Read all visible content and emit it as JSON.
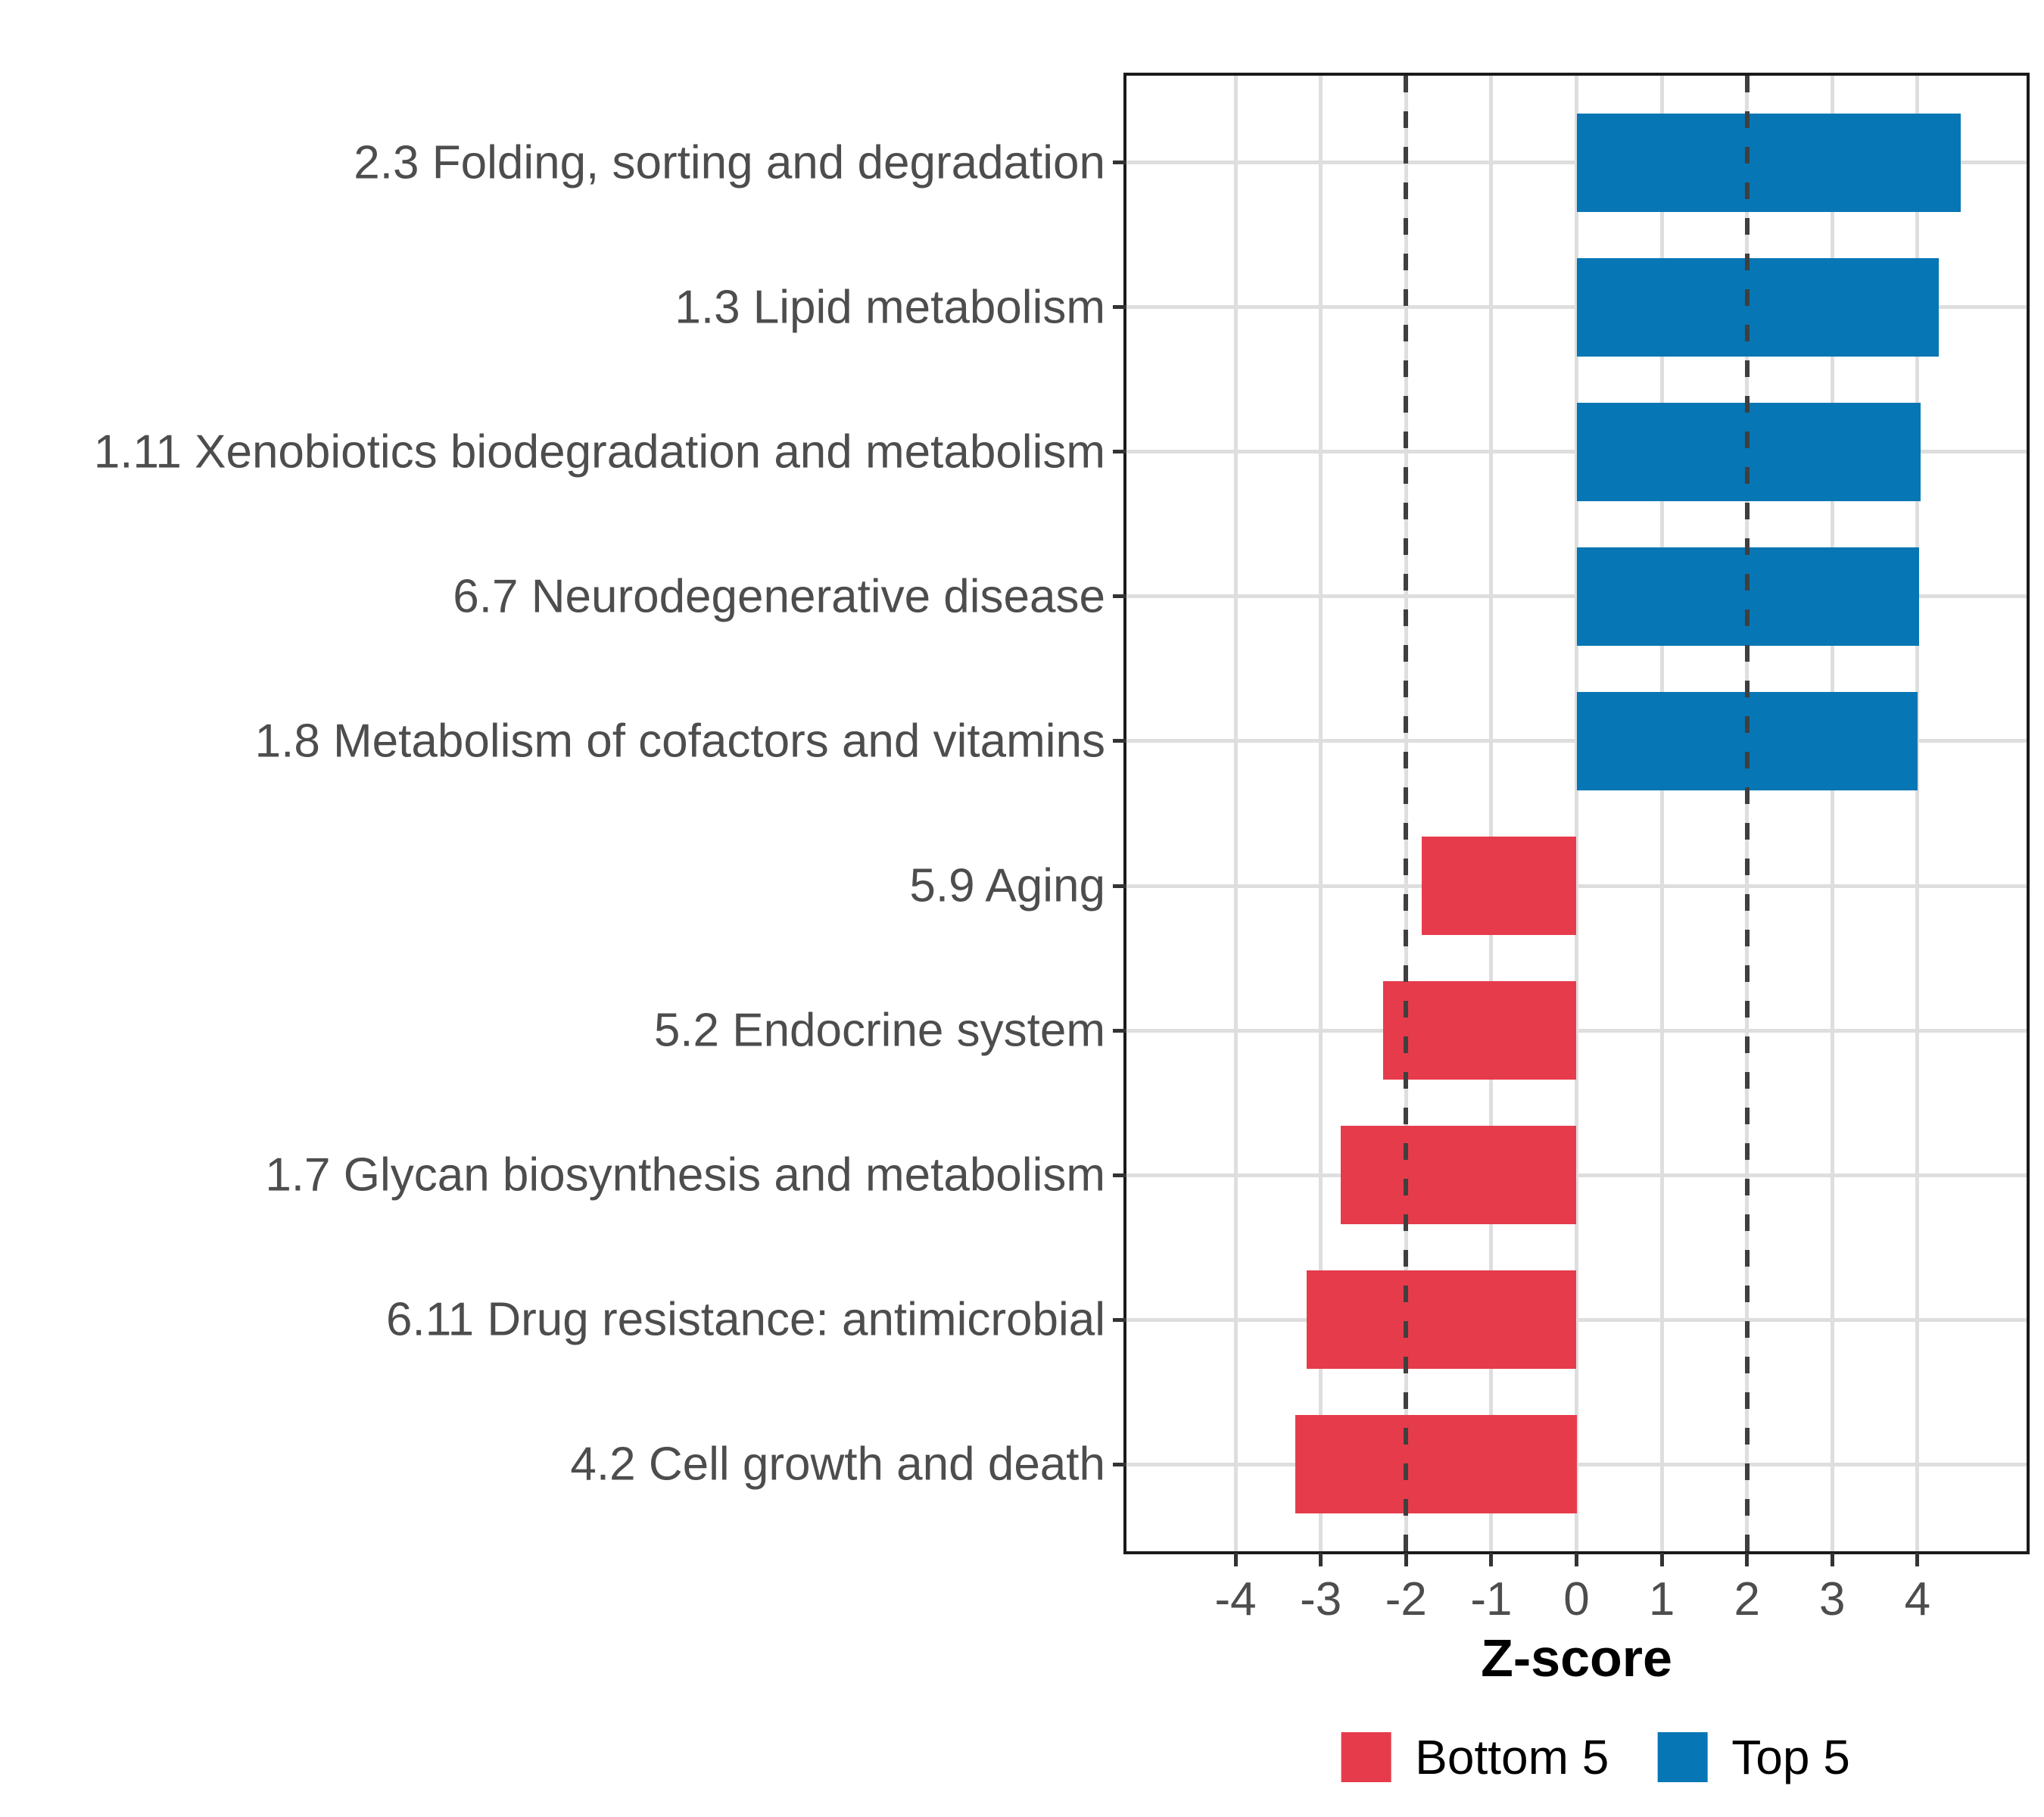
{
  "chart_data": {
    "type": "bar",
    "orientation": "horizontal",
    "title": "",
    "xlabel": "Z-score",
    "ylabel": "",
    "categories": [
      "2.3 Folding, sorting and degradation",
      "1.3 Lipid metabolism",
      "1.11 Xenobiotics biodegradation and metabolism",
      "6.7 Neurodegenerative disease",
      "1.8 Metabolism of cofactors and vitamins",
      "5.9 Aging",
      "5.2 Endocrine system",
      "1.7 Glycan biosynthesis and metabolism",
      "6.11 Drug resistance: antimicrobial",
      "4.2 Cell growth and death"
    ],
    "values": [
      4.51,
      4.25,
      4.04,
      4.02,
      4.0,
      -1.82,
      -2.27,
      -2.77,
      -3.17,
      -3.3
    ],
    "groups": [
      "Top 5",
      "Top 5",
      "Top 5",
      "Top 5",
      "Top 5",
      "Bottom 5",
      "Bottom 5",
      "Bottom 5",
      "Bottom 5",
      "Bottom 5"
    ],
    "x_ticks": [
      -4,
      -3,
      -2,
      -1,
      0,
      1,
      2,
      3,
      4
    ],
    "xlim": [
      -5.28,
      5.28
    ],
    "reference_lines": [
      -2,
      2
    ],
    "grid": "major-only",
    "legend": {
      "position": "bottom",
      "entries": [
        {
          "label": "Bottom 5",
          "color": "#E63B4B"
        },
        {
          "label": "Top 5",
          "color": "#0776B4"
        }
      ]
    }
  },
  "colors": {
    "bottom5": "#E63B4B",
    "top5": "#0776B4",
    "gridline": "#DEDEDE",
    "reference_line": "#3F3F3F",
    "axis_text": "#4D4D4D",
    "panel_border": "#1A1A1A",
    "tick_mark": "#333333"
  }
}
